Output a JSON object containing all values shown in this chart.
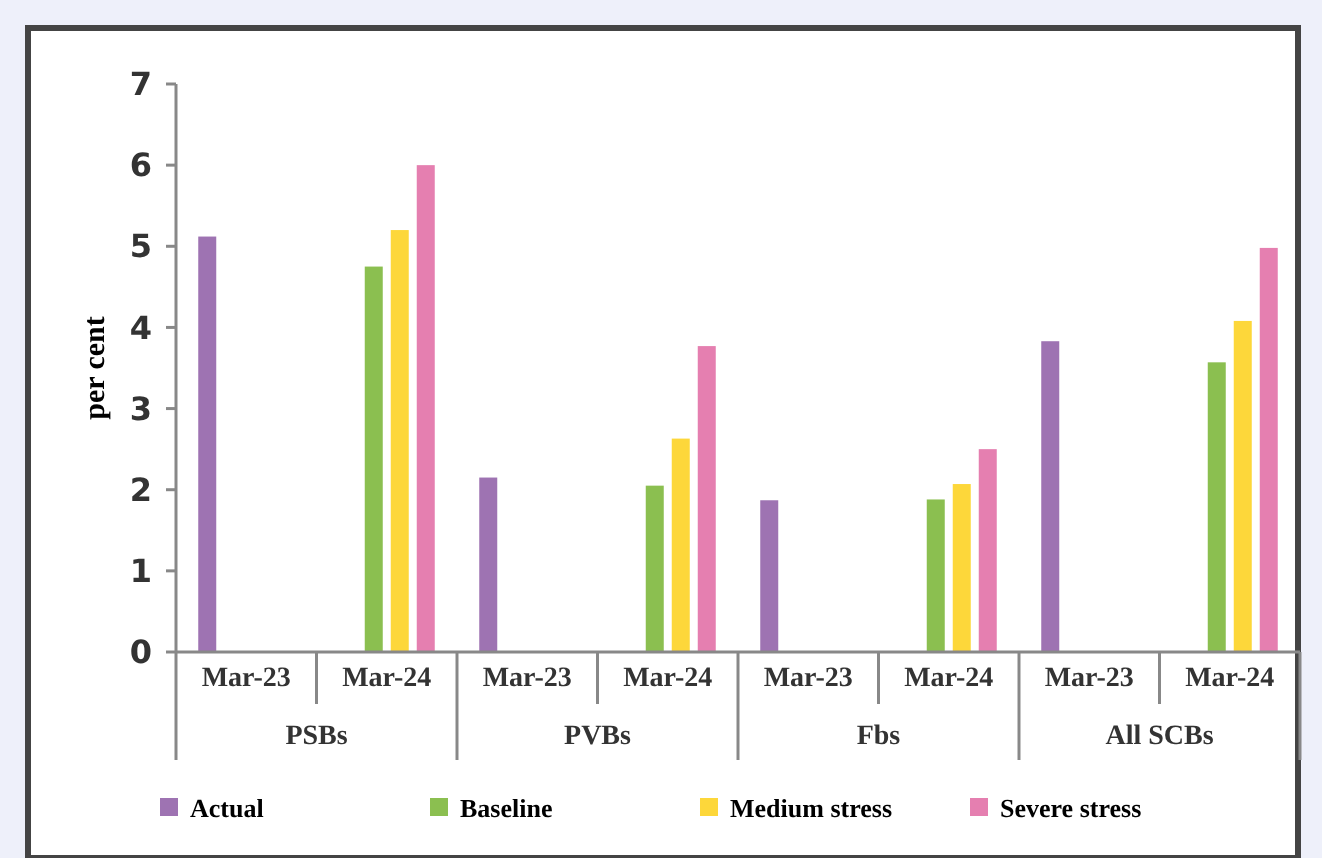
{
  "chart_data": {
    "type": "bar",
    "ylabel": "per cent",
    "categories": [
      "Mar-23",
      "Mar-24",
      "Mar-23",
      "Mar-24",
      "Mar-23",
      "Mar-24",
      "Mar-23",
      "Mar-24"
    ],
    "annotations": [
      "PSBs",
      "PVBs",
      "Fbs",
      "All SCBs"
    ],
    "series": [
      {
        "name": "Actual",
        "color": "#9e73b2",
        "values": [
          5.12,
          null,
          2.15,
          null,
          1.87,
          null,
          3.83,
          null
        ]
      },
      {
        "name": "Baseline",
        "color": "#8bbf50",
        "values": [
          null,
          4.75,
          null,
          2.05,
          null,
          1.88,
          null,
          3.57
        ]
      },
      {
        "name": "Medium stress",
        "color": "#fdd73a",
        "values": [
          null,
          5.2,
          null,
          2.63,
          null,
          2.07,
          null,
          4.08
        ]
      },
      {
        "name": "Severe stress",
        "color": "#e57fb0",
        "values": [
          null,
          6.0,
          null,
          3.77,
          null,
          2.5,
          null,
          4.98
        ]
      }
    ],
    "ylim": [
      0,
      7
    ],
    "yticks": [
      0,
      1,
      2,
      3,
      4,
      5,
      6,
      7
    ],
    "legend": "bottom"
  }
}
